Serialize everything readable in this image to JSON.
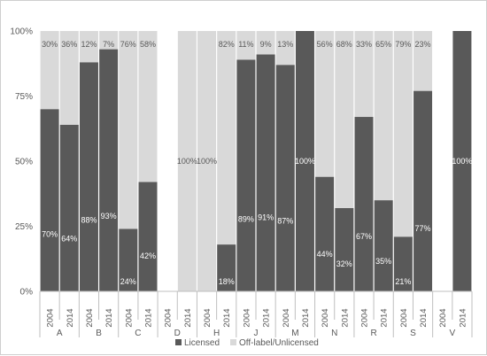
{
  "chart_data": {
    "type": "bar",
    "stacked": true,
    "percent": true,
    "groups": [
      {
        "label": "A",
        "years": [
          "2004",
          "2014"
        ]
      },
      {
        "label": "B",
        "years": [
          "2004",
          "2014"
        ]
      },
      {
        "label": "C",
        "years": [
          "2004",
          "2014"
        ]
      },
      {
        "label": "D",
        "years": [
          "2004",
          "2014"
        ]
      },
      {
        "label": "H",
        "years": [
          "2004",
          "2014"
        ]
      },
      {
        "label": "J",
        "years": [
          "2004",
          "2014"
        ]
      },
      {
        "label": "M",
        "years": [
          "2004",
          "2014"
        ]
      },
      {
        "label": "N",
        "years": [
          "2004",
          "2014"
        ]
      },
      {
        "label": "R",
        "years": [
          "2004",
          "2014"
        ]
      },
      {
        "label": "S",
        "years": [
          "2004",
          "2014"
        ]
      },
      {
        "label": "V",
        "years": [
          "2004",
          "2014"
        ]
      }
    ],
    "series": [
      {
        "name": "Licensed",
        "color": "#595959",
        "values": [
          70,
          64,
          88,
          93,
          24,
          42,
          null,
          0,
          0,
          18,
          89,
          91,
          87,
          100,
          44,
          32,
          67,
          35,
          21,
          77,
          null,
          100
        ],
        "labels": [
          "70%",
          "64%",
          "88%",
          "93%",
          "24%",
          "42%",
          "",
          "",
          "",
          "18%",
          "89%",
          "91%",
          "87%",
          "100%",
          "44%",
          "32%",
          "67%",
          "35%",
          "21%",
          "77%",
          "",
          "100%"
        ]
      },
      {
        "name": "Off-label/Unlicensed",
        "color": "#d9d9d9",
        "values": [
          30,
          36,
          12,
          7,
          76,
          58,
          null,
          100,
          100,
          82,
          11,
          9,
          13,
          0,
          56,
          68,
          33,
          65,
          79,
          23,
          null,
          0
        ],
        "labels": [
          "30%",
          "36%",
          "12%",
          "7%",
          "76%",
          "58%",
          "",
          "100%",
          "100%",
          "82%",
          "11%",
          "9%",
          "13%",
          "",
          "56%",
          "68%",
          "33%",
          "65%",
          "79%",
          "23%",
          "",
          ""
        ]
      }
    ],
    "y_ticks": [
      "0%",
      "25%",
      "50%",
      "75%",
      "100%"
    ],
    "ylim": [
      0,
      100
    ],
    "legend_position": "bottom",
    "grid": false
  }
}
